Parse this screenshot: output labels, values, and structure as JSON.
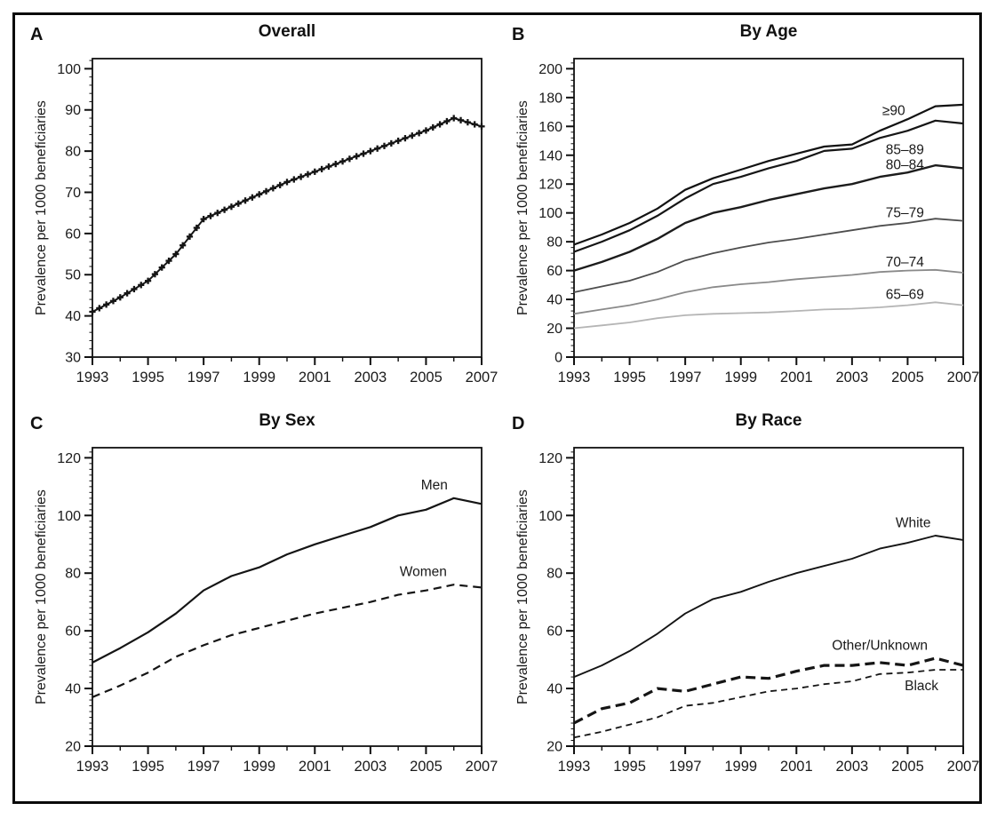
{
  "figure": {
    "border_color": "#0a0a0a",
    "background": "#ffffff"
  },
  "chart_data": [
    {
      "type": "line",
      "panel_label": "A",
      "title": "Overall",
      "ylabel": "Prevalence per 1000 beneficiaries",
      "x": [
        1993,
        1994,
        1995,
        1996,
        1997,
        1998,
        1999,
        2000,
        2001,
        2002,
        2003,
        2004,
        2005,
        2006,
        2007
      ],
      "xticks": [
        1993,
        1995,
        1997,
        1999,
        2001,
        2003,
        2005,
        2007
      ],
      "ylim": [
        30,
        100
      ],
      "ytick_step": 10,
      "yminor_step": 2,
      "grid": "off",
      "series": [
        {
          "name": "Overall",
          "values": [
            41,
            44.5,
            48.5,
            55,
            63.5,
            66.5,
            69.5,
            72.5,
            75,
            77.5,
            80,
            82.5,
            85,
            88,
            86
          ],
          "color": "#151515",
          "width": 2,
          "dash": "none",
          "marker": "plus-dense"
        }
      ],
      "series_labels": []
    },
    {
      "type": "line",
      "panel_label": "B",
      "title": "By Age",
      "ylabel": "Prevalence per 1000 beneficiaries",
      "x": [
        1993,
        1994,
        1995,
        1996,
        1997,
        1998,
        1999,
        2000,
        2001,
        2002,
        2003,
        2004,
        2005,
        2006,
        2007
      ],
      "xticks": [
        1993,
        1995,
        1997,
        1999,
        2001,
        2003,
        2005,
        2007
      ],
      "ylim": [
        0,
        200
      ],
      "ytick_step": 20,
      "yminor_step": 4,
      "grid": "off",
      "series": [
        {
          "name": "≥90",
          "values": [
            78,
            85,
            93,
            103,
            116,
            124,
            130,
            136,
            141,
            146,
            147.5,
            157,
            165,
            174,
            175
          ],
          "color": "#121212",
          "width": 2.2,
          "dash": "none",
          "marker": "none"
        },
        {
          "name": "85–89",
          "values": [
            73,
            80,
            88,
            98,
            110,
            120,
            125,
            131,
            136,
            143,
            144.5,
            152,
            157,
            164,
            162
          ],
          "color": "#161616",
          "width": 2.2,
          "dash": "none",
          "marker": "none"
        },
        {
          "name": "80–84",
          "values": [
            60,
            66,
            73,
            82,
            93,
            100,
            104,
            109,
            113,
            117,
            120,
            125,
            128,
            133,
            131
          ],
          "color": "#1c1c1c",
          "width": 2.4,
          "dash": "none",
          "marker": "none"
        },
        {
          "name": "75–79",
          "values": [
            45,
            49,
            53,
            59,
            67,
            72,
            76,
            79.5,
            82,
            85,
            88,
            91,
            93,
            96,
            94.5
          ],
          "color": "#4d4d4d",
          "width": 1.8,
          "dash": "none",
          "marker": "none"
        },
        {
          "name": "70–74",
          "values": [
            30,
            33,
            36,
            40,
            45,
            48.5,
            50.5,
            52,
            54,
            55.5,
            57,
            59,
            60,
            60.5,
            58.5
          ],
          "color": "#8a8a8a",
          "width": 1.8,
          "dash": "none",
          "marker": "none"
        },
        {
          "name": "65–69",
          "values": [
            20,
            22,
            24,
            27,
            29,
            30,
            30.5,
            31,
            32,
            33,
            33.5,
            34.5,
            36,
            38,
            36
          ],
          "color": "#b5b5b5",
          "width": 1.8,
          "dash": "none",
          "marker": "none"
        }
      ],
      "series_labels": [
        {
          "text": "≥90",
          "x": 2004.5,
          "y": 171
        },
        {
          "text": "85–89",
          "x": 2004.9,
          "y": 144
        },
        {
          "text": "80–84",
          "x": 2004.9,
          "y": 133.5
        },
        {
          "text": "75–79",
          "x": 2004.9,
          "y": 100
        },
        {
          "text": "70–74",
          "x": 2004.9,
          "y": 66
        },
        {
          "text": "65–69",
          "x": 2004.9,
          "y": 43.5
        }
      ]
    },
    {
      "type": "line",
      "panel_label": "C",
      "title": "By Sex",
      "ylabel": "Prevalence per 1000 beneficiaries",
      "x": [
        1993,
        1994,
        1995,
        1996,
        1997,
        1998,
        1999,
        2000,
        2001,
        2002,
        2003,
        2004,
        2005,
        2006,
        2007
      ],
      "xticks": [
        1993,
        1995,
        1997,
        1999,
        2001,
        2003,
        2005,
        2007
      ],
      "ylim": [
        20,
        120
      ],
      "ytick_step": 20,
      "yminor_step": 2,
      "grid": "off",
      "series": [
        {
          "name": "Men",
          "values": [
            49,
            54,
            59.5,
            66,
            74,
            79,
            82,
            86.5,
            90,
            93,
            96,
            100,
            102,
            106,
            104
          ],
          "color": "#151515",
          "width": 2.2,
          "dash": "none",
          "marker": "none"
        },
        {
          "name": "Women",
          "values": [
            37,
            41,
            45.5,
            51,
            55,
            58.5,
            61,
            63.5,
            66,
            68,
            70,
            72.5,
            74,
            76,
            75
          ],
          "color": "#151515",
          "width": 2.2,
          "dash": "9 6",
          "marker": "none"
        }
      ],
      "series_labels": [
        {
          "text": "Men",
          "x": 2005.3,
          "y": 110.5
        },
        {
          "text": "Women",
          "x": 2004.9,
          "y": 80.5
        }
      ]
    },
    {
      "type": "line",
      "panel_label": "D",
      "title": "By Race",
      "ylabel": "Prevalence per 1000 beneficiaries",
      "x": [
        1993,
        1994,
        1995,
        1996,
        1997,
        1998,
        1999,
        2000,
        2001,
        2002,
        2003,
        2004,
        2005,
        2006,
        2007
      ],
      "xticks": [
        1993,
        1995,
        1997,
        1999,
        2001,
        2003,
        2005,
        2007
      ],
      "ylim": [
        20,
        120
      ],
      "ytick_step": 20,
      "yminor_step": 2,
      "grid": "off",
      "series": [
        {
          "name": "White",
          "values": [
            44,
            48,
            53,
            59,
            66,
            71,
            73.5,
            77,
            80,
            82.5,
            85,
            88.5,
            90.5,
            93,
            91.5
          ],
          "color": "#151515",
          "width": 1.9,
          "dash": "none",
          "marker": "none"
        },
        {
          "name": "Other/Unknown",
          "values": [
            28,
            33,
            35,
            40,
            39,
            41.5,
            44,
            43.5,
            46,
            48,
            48,
            49,
            48,
            50.5,
            48
          ],
          "color": "#151515",
          "width": 3.2,
          "dash": "11 6",
          "marker": "none"
        },
        {
          "name": "Black",
          "values": [
            23,
            25,
            27.5,
            30,
            34,
            35,
            37,
            39,
            40,
            41.5,
            42.5,
            45,
            45.5,
            46.5,
            46.5
          ],
          "color": "#151515",
          "width": 1.8,
          "dash": "7 5",
          "marker": "none"
        }
      ],
      "series_labels": [
        {
          "text": "White",
          "x": 2005.2,
          "y": 97.5
        },
        {
          "text": "Other/Unknown",
          "x": 2004.0,
          "y": 55
        },
        {
          "text": "Black",
          "x": 2005.5,
          "y": 41
        }
      ]
    }
  ]
}
